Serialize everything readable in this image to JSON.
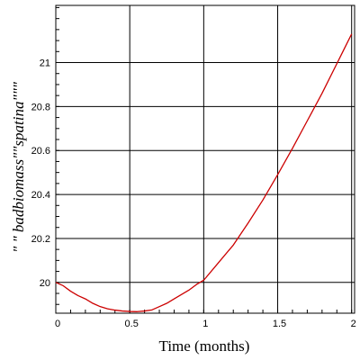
{
  "chart_data": {
    "type": "line",
    "title": "",
    "xlabel": "Time (months)",
    "ylabel": "\" \" badbiomass\"\"spatina\"\"\"",
    "xlim": [
      0,
      2.02
    ],
    "ylim": [
      19.86,
      21.26
    ],
    "grid": true,
    "x_ticks": [
      0,
      0.5,
      1,
      1.5,
      2
    ],
    "x_tick_labels": [
      "0",
      "0.5",
      "1",
      "1.5",
      "2"
    ],
    "y_ticks": [
      20,
      20.2,
      20.4,
      20.6,
      20.8,
      21
    ],
    "y_tick_labels": [
      "20",
      "20.2",
      "20.4",
      "20.6",
      "20.8",
      "21"
    ],
    "series": [
      {
        "color": "#cc0000",
        "x": [
          0,
          0.05,
          0.1,
          0.15,
          0.2,
          0.25,
          0.3,
          0.35,
          0.4,
          0.45,
          0.5,
          0.55,
          0.6,
          0.65,
          0.7,
          0.75,
          0.8,
          0.85,
          0.9,
          0.95,
          1.0,
          1.1,
          1.2,
          1.3,
          1.4,
          1.5,
          1.6,
          1.7,
          1.8,
          1.9,
          2.0
        ],
        "values": [
          20.0,
          19.985,
          19.96,
          19.94,
          19.925,
          19.905,
          19.89,
          19.88,
          19.874,
          19.87,
          19.868,
          19.867,
          19.87,
          19.875,
          19.89,
          19.905,
          19.925,
          19.945,
          19.965,
          19.99,
          20.01,
          20.09,
          20.17,
          20.27,
          20.375,
          20.49,
          20.61,
          20.735,
          20.86,
          20.995,
          21.13
        ]
      }
    ],
    "colors": {
      "grid": "#000000",
      "frame": "#000000",
      "line": "#cc0000",
      "background": "#ffffff"
    }
  }
}
